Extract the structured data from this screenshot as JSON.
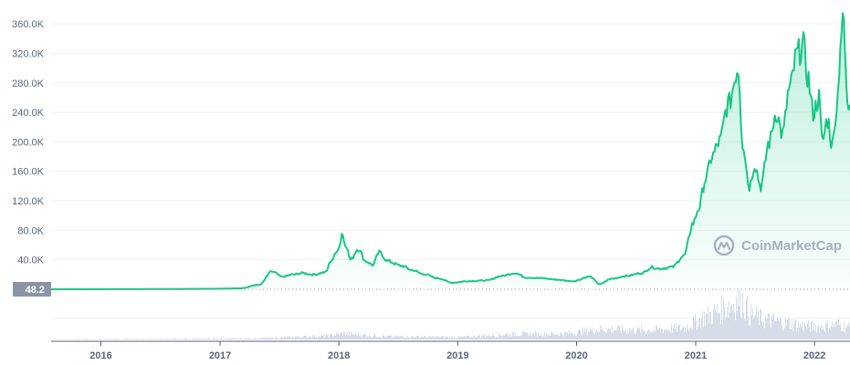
{
  "chart_data": {
    "type": "area",
    "title": "",
    "xlabel": "",
    "ylabel": "",
    "ylim": [
      0,
      375000
    ],
    "xlim": [
      "2015-08",
      "2022-04-20"
    ],
    "y_ticks": [
      "40.0K",
      "80.0K",
      "120.0K",
      "160.0K",
      "200.0K",
      "240.0K",
      "280.0K",
      "320.0K",
      "360.0K"
    ],
    "y_tick_values": [
      40000,
      80000,
      120000,
      160000,
      200000,
      240000,
      280000,
      320000,
      360000
    ],
    "x_ticks": [
      "2016",
      "2017",
      "2018",
      "2019",
      "2020",
      "2021",
      "2022"
    ],
    "x_tick_dates": [
      "2016-01-01",
      "2017-01-01",
      "2018-01-01",
      "2019-01-01",
      "2020-01-01",
      "2021-01-01",
      "2022-01-01"
    ],
    "current_value_label": "48.2",
    "current_value": 48.2,
    "line_color": "#16c784",
    "grid": true,
    "series": [
      {
        "values_x": [
          "2015-08-01",
          "2015-12-01",
          "2016-06-01",
          "2016-12-01",
          "2017-03-01",
          "2017-05-01",
          "2017-06-10",
          "2017-07-10",
          "2017-08-15",
          "2017-09-10",
          "2017-10-15",
          "2017-11-20",
          "2017-12-10",
          "2018-01-03",
          "2018-01-10",
          "2018-01-20",
          "2018-02-06",
          "2018-03-01",
          "2018-03-25",
          "2018-04-15",
          "2018-05-05",
          "2018-06-01",
          "2018-07-10",
          "2018-08-15",
          "2018-09-15",
          "2018-11-01",
          "2018-12-15",
          "2019-02-01",
          "2019-04-01",
          "2019-05-15",
          "2019-06-25",
          "2019-08-01",
          "2019-09-15",
          "2019-11-01",
          "2019-12-20",
          "2020-02-10",
          "2020-03-13",
          "2020-04-15",
          "2020-06-01",
          "2020-07-20",
          "2020-08-20",
          "2020-09-10",
          "2020-10-20",
          "2020-11-25",
          "2020-12-25",
          "2021-01-10",
          "2021-02-01",
          "2021-02-20",
          "2021-03-15",
          "2021-04-10",
          "2021-05-12",
          "2021-05-25",
          "2021-06-15",
          "2021-07-01",
          "2021-07-20",
          "2021-08-15",
          "2021-09-05",
          "2021-09-25",
          "2021-10-15",
          "2021-11-10",
          "2021-11-28",
          "2021-12-10",
          "2021-12-28",
          "2022-01-15",
          "2022-01-24",
          "2022-02-10",
          "2022-02-25",
          "2022-03-10",
          "2022-03-25",
          "2022-04-01",
          "2022-04-06",
          "2022-04-12",
          "2022-04-20"
        ],
        "values_y": [
          0,
          50,
          200,
          600,
          1200,
          6000,
          24000,
          17000,
          20000,
          22000,
          20000,
          23000,
          40000,
          58000,
          76000,
          63000,
          40000,
          55000,
          38000,
          33000,
          50000,
          38000,
          32000,
          26000,
          21000,
          15000,
          9000,
          11000,
          12000,
          18000,
          22000,
          16000,
          15000,
          13000,
          11000,
          17000,
          7000,
          14000,
          18000,
          22000,
          30000,
          28000,
          30000,
          45000,
          90000,
          110000,
          150000,
          180000,
          200000,
          250000,
          300000,
          200000,
          140000,
          170000,
          140000,
          200000,
          240000,
          210000,
          270000,
          320000,
          330000,
          290000,
          240000,
          260000,
          200000,
          230000,
          195000,
          250000,
          350000,
          365000,
          300000,
          260000,
          250000
        ]
      }
    ],
    "volume": {
      "values_x": [
        "2015-08-01",
        "2016-06-01",
        "2017-05-01",
        "2017-12-01",
        "2018-01-15",
        "2018-06-01",
        "2019-01-01",
        "2019-06-01",
        "2019-12-01",
        "2020-03-13",
        "2020-08-01",
        "2020-12-01",
        "2021-01-15",
        "2021-03-01",
        "2021-05-19",
        "2021-06-15",
        "2021-08-01",
        "2021-10-15",
        "2021-12-01",
        "2022-01-15",
        "2022-03-15",
        "2022-04-20"
      ],
      "values_y": [
        0.5,
        0.8,
        1.5,
        5,
        8,
        4,
        3,
        7,
        8,
        14,
        12,
        16,
        28,
        36,
        55,
        34,
        26,
        22,
        18,
        17,
        20,
        16
      ]
    }
  },
  "watermark": {
    "text": "CoinMarketCap"
  }
}
